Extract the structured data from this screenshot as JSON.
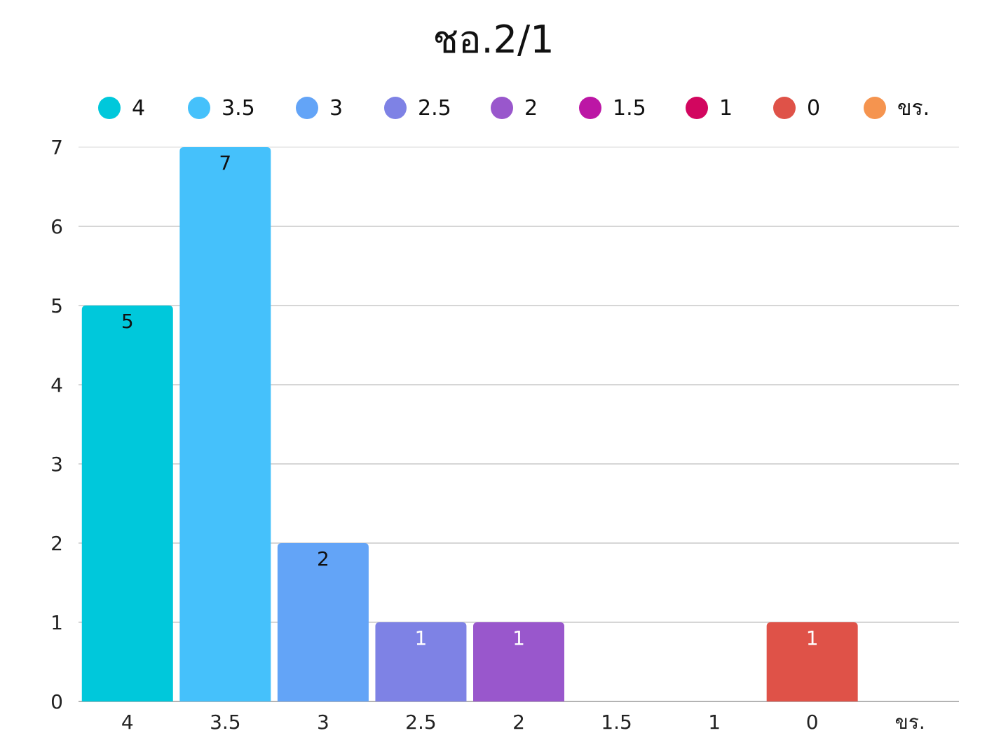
{
  "chart_data": {
    "type": "bar",
    "title": "ชอ.2/1",
    "xlabel": "",
    "ylabel": "",
    "ylim": [
      0,
      7
    ],
    "yticks": [
      0,
      1,
      2,
      3,
      4,
      5,
      6,
      7
    ],
    "grid": true,
    "legend_position": "top",
    "categories": [
      "4",
      "3.5",
      "3",
      "2.5",
      "2",
      "1.5",
      "1",
      "0",
      "ขร."
    ],
    "values": [
      5,
      7,
      2,
      1,
      1,
      0,
      0,
      1,
      0
    ],
    "data_labels": [
      "5",
      "7",
      "2",
      "1",
      "1",
      "",
      "",
      "1",
      ""
    ],
    "colors": [
      "#00C8DB",
      "#45C1FB",
      "#63A4F7",
      "#7E82E5",
      "#9957CC",
      "#BC16A5",
      "#D2065F",
      "#DF5248",
      "#F5944F"
    ],
    "label_colors": [
      "#111111",
      "#111111",
      "#111111",
      "#ffffff",
      "#ffffff",
      "#ffffff",
      "#ffffff",
      "#ffffff",
      "#111111"
    ]
  }
}
